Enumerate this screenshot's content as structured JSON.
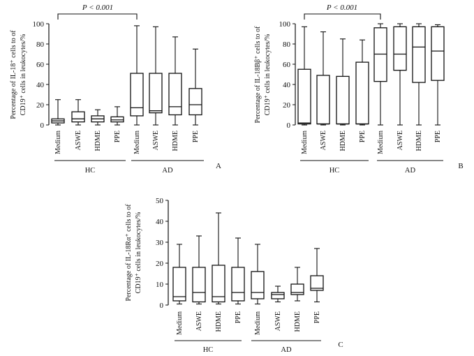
{
  "chart_data": [
    {
      "type": "box",
      "panel": "A",
      "ylabel_line1": "Percentage of IL-18⁺ cells to of",
      "ylabel_line2": "CD19⁺ cells in leukocytes/%",
      "ylim": [
        0,
        100
      ],
      "yticks": [
        "0",
        "20",
        "40",
        "60",
        "80",
        "100"
      ],
      "significance": "P < 0.001",
      "categories": [
        "Medium",
        "ASWE",
        "HDME",
        "PPE",
        "Medium",
        "ASWE",
        "HDME",
        "PPE"
      ],
      "groups": [
        {
          "name": "HC",
          "from": 0,
          "to": 3
        },
        {
          "name": "AD",
          "from": 4,
          "to": 7
        }
      ],
      "boxes": [
        {
          "min": 0,
          "q1": 2,
          "median": 4,
          "q3": 6,
          "max": 25
        },
        {
          "min": 0,
          "q1": 3,
          "median": 6,
          "q3": 13,
          "max": 25
        },
        {
          "min": 0,
          "q1": 3,
          "median": 6,
          "q3": 9,
          "max": 15
        },
        {
          "min": 0,
          "q1": 3,
          "median": 5,
          "q3": 8,
          "max": 18
        },
        {
          "min": 0,
          "q1": 9,
          "median": 17,
          "q3": 51,
          "max": 98
        },
        {
          "min": 0,
          "q1": 12,
          "median": 14,
          "q3": 51,
          "max": 97
        },
        {
          "min": 0,
          "q1": 10,
          "median": 18,
          "q3": 51,
          "max": 87
        },
        {
          "min": 0,
          "q1": 10,
          "median": 20,
          "q3": 36,
          "max": 75
        }
      ]
    },
    {
      "type": "box",
      "panel": "B",
      "ylabel_line1": "Percentage of IL-18Bβ⁺ cells to of",
      "ylabel_line2": "CD19⁺ cells in leukocytes/%",
      "ylim": [
        0,
        100
      ],
      "yticks": [
        "0",
        "20",
        "40",
        "60",
        "80",
        "100"
      ],
      "significance": "P < 0.001",
      "categories": [
        "Medium",
        "ASWE",
        "HDME",
        "PPE",
        "Medium",
        "ASWE",
        "HDME",
        "PPE"
      ],
      "groups": [
        {
          "name": "HC",
          "from": 0,
          "to": 3
        },
        {
          "name": "AD",
          "from": 4,
          "to": 7
        }
      ],
      "boxes": [
        {
          "min": 0,
          "q1": 1,
          "median": 2,
          "q3": 55,
          "max": 97
        },
        {
          "min": 0,
          "q1": 1,
          "median": 1,
          "q3": 49,
          "max": 92
        },
        {
          "min": 0,
          "q1": 1,
          "median": 1,
          "q3": 48,
          "max": 85
        },
        {
          "min": 0,
          "q1": 1,
          "median": 1,
          "q3": 62,
          "max": 84
        },
        {
          "min": 0,
          "q1": 43,
          "median": 70,
          "q3": 96,
          "max": 100
        },
        {
          "min": 0,
          "q1": 54,
          "median": 70,
          "q3": 97,
          "max": 100
        },
        {
          "min": 0,
          "q1": 42,
          "median": 77,
          "q3": 97,
          "max": 100
        },
        {
          "min": 0,
          "q1": 44,
          "median": 73,
          "q3": 97,
          "max": 99
        }
      ]
    },
    {
      "type": "box",
      "panel": "C",
      "ylabel_line1": "Percentage of IL-18Rα⁺ cells to of",
      "ylabel_line2": "CD19⁺ cells in leukocytes/%",
      "ylim": [
        0,
        50
      ],
      "yticks": [
        "0",
        "10",
        "20",
        "30",
        "40",
        "50"
      ],
      "significance": "",
      "categories": [
        "Medium",
        "ASWE",
        "HDME",
        "PPE",
        "Medium",
        "ASWE",
        "HDME",
        "PPE"
      ],
      "groups": [
        {
          "name": "HC",
          "from": 0,
          "to": 3
        },
        {
          "name": "AD",
          "from": 4,
          "to": 7
        }
      ],
      "boxes": [
        {
          "min": 0.5,
          "q1": 2,
          "median": 4,
          "q3": 18,
          "max": 29
        },
        {
          "min": 0.5,
          "q1": 1.5,
          "median": 6,
          "q3": 18,
          "max": 33
        },
        {
          "min": 0.5,
          "q1": 1.5,
          "median": 4,
          "q3": 19,
          "max": 44
        },
        {
          "min": 0.5,
          "q1": 2,
          "median": 6,
          "q3": 18,
          "max": 32
        },
        {
          "min": 0.5,
          "q1": 3,
          "median": 6,
          "q3": 16,
          "max": 29
        },
        {
          "min": 1.5,
          "q1": 3,
          "median": 5,
          "q3": 6,
          "max": 9
        },
        {
          "min": 2,
          "q1": 5,
          "median": 6,
          "q3": 10,
          "max": 18
        },
        {
          "min": 1.5,
          "q1": 7,
          "median": 8,
          "q3": 14,
          "max": 27
        }
      ]
    }
  ]
}
